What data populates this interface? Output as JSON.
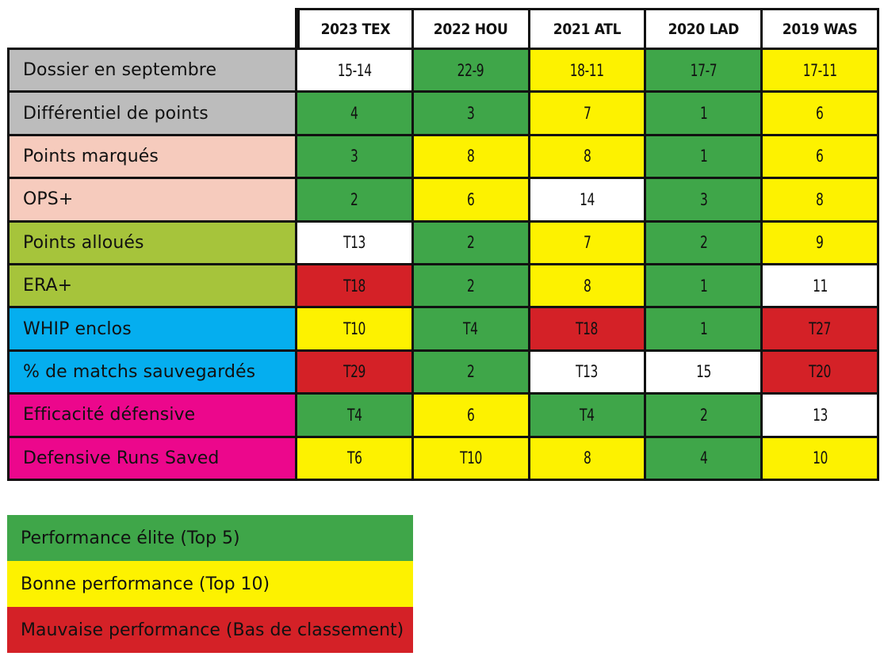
{
  "colors": {
    "green": "#3fa649",
    "yellow": "#fdf200",
    "red": "#d42127",
    "white": "#ffffff",
    "gray": "#bcbcbc",
    "salmon": "#f6cbbd",
    "olive": "#a6c43b",
    "cyan": "#05aeef",
    "magenta": "#ec078c"
  },
  "table": {
    "headers": [
      "2023 TEX",
      "2022 HOU",
      "2021 ATL",
      "2020 LAD",
      "2019 WAS"
    ],
    "rows": [
      {
        "label": "Dossier en septembre",
        "label_color": "#bcbcbc",
        "cells": [
          {
            "v": "15-14",
            "c": "#ffffff"
          },
          {
            "v": "22-9",
            "c": "#3fa649"
          },
          {
            "v": "18-11",
            "c": "#fdf200"
          },
          {
            "v": "17-7",
            "c": "#3fa649"
          },
          {
            "v": "17-11",
            "c": "#fdf200"
          }
        ]
      },
      {
        "label": "Différentiel de points",
        "label_color": "#bcbcbc",
        "cells": [
          {
            "v": "4",
            "c": "#3fa649"
          },
          {
            "v": "3",
            "c": "#3fa649"
          },
          {
            "v": "7",
            "c": "#fdf200"
          },
          {
            "v": "1",
            "c": "#3fa649"
          },
          {
            "v": "6",
            "c": "#fdf200"
          }
        ]
      },
      {
        "label": "Points marqués",
        "label_color": "#f6cbbd",
        "cells": [
          {
            "v": "3",
            "c": "#3fa649"
          },
          {
            "v": "8",
            "c": "#fdf200"
          },
          {
            "v": "8",
            "c": "#fdf200"
          },
          {
            "v": "1",
            "c": "#3fa649"
          },
          {
            "v": "6",
            "c": "#fdf200"
          }
        ]
      },
      {
        "label": "OPS+",
        "label_color": "#f6cbbd",
        "cells": [
          {
            "v": "2",
            "c": "#3fa649"
          },
          {
            "v": "6",
            "c": "#fdf200"
          },
          {
            "v": "14",
            "c": "#ffffff"
          },
          {
            "v": "3",
            "c": "#3fa649"
          },
          {
            "v": "8",
            "c": "#fdf200"
          }
        ]
      },
      {
        "label": "Points alloués",
        "label_color": "#a6c43b",
        "cells": [
          {
            "v": "T13",
            "c": "#ffffff"
          },
          {
            "v": "2",
            "c": "#3fa649"
          },
          {
            "v": "7",
            "c": "#fdf200"
          },
          {
            "v": "2",
            "c": "#3fa649"
          },
          {
            "v": "9",
            "c": "#fdf200"
          }
        ]
      },
      {
        "label": "ERA+",
        "label_color": "#a6c43b",
        "cells": [
          {
            "v": "T18",
            "c": "#d42127"
          },
          {
            "v": "2",
            "c": "#3fa649"
          },
          {
            "v": "8",
            "c": "#fdf200"
          },
          {
            "v": "1",
            "c": "#3fa649"
          },
          {
            "v": "11",
            "c": "#ffffff"
          }
        ]
      },
      {
        "label": "WHIP enclos",
        "label_color": "#05aeef",
        "cells": [
          {
            "v": "T10",
            "c": "#fdf200"
          },
          {
            "v": "T4",
            "c": "#3fa649"
          },
          {
            "v": "T18",
            "c": "#d42127"
          },
          {
            "v": "1",
            "c": "#3fa649"
          },
          {
            "v": "T27",
            "c": "#d42127"
          }
        ]
      },
      {
        "label": "% de matchs sauvegardés",
        "label_color": "#05aeef",
        "cells": [
          {
            "v": "T29",
            "c": "#d42127"
          },
          {
            "v": "2",
            "c": "#3fa649"
          },
          {
            "v": "T13",
            "c": "#ffffff"
          },
          {
            "v": "15",
            "c": "#ffffff"
          },
          {
            "v": "T20",
            "c": "#d42127"
          }
        ]
      },
      {
        "label": "Efficacité défensive",
        "label_color": "#ec078c",
        "cells": [
          {
            "v": "T4",
            "c": "#3fa649"
          },
          {
            "v": "6",
            "c": "#fdf200"
          },
          {
            "v": "T4",
            "c": "#3fa649"
          },
          {
            "v": "2",
            "c": "#3fa649"
          },
          {
            "v": "13",
            "c": "#ffffff"
          }
        ]
      },
      {
        "label": "Defensive Runs Saved",
        "label_color": "#ec078c",
        "cells": [
          {
            "v": "T6",
            "c": "#fdf200"
          },
          {
            "v": "T10",
            "c": "#fdf200"
          },
          {
            "v": "8",
            "c": "#fdf200"
          },
          {
            "v": "4",
            "c": "#3fa649"
          },
          {
            "v": "10",
            "c": "#fdf200"
          }
        ]
      }
    ]
  },
  "legend": [
    {
      "label": "Performance élite (Top 5)",
      "color": "#3fa649"
    },
    {
      "label": "Bonne performance (Top 10)",
      "color": "#fdf200"
    },
    {
      "label": "Mauvaise performance (Bas de classement)",
      "color": "#d42127"
    }
  ]
}
